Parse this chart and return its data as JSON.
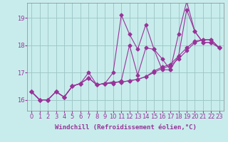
{
  "xlabel": "Windchill (Refroidissement éolien,°C)",
  "bg_color": "#c8ecec",
  "grid_color": "#a0c8c8",
  "line_color": "#993399",
  "x_values": [
    0,
    1,
    2,
    3,
    4,
    5,
    6,
    7,
    8,
    9,
    10,
    11,
    12,
    13,
    14,
    15,
    16,
    17,
    18,
    19,
    20,
    21,
    22,
    23
  ],
  "series": [
    [
      16.3,
      16.0,
      16.0,
      16.3,
      16.1,
      16.5,
      16.6,
      16.8,
      16.55,
      16.6,
      17.0,
      19.1,
      18.4,
      17.85,
      18.75,
      17.85,
      17.1,
      17.1,
      18.4,
      19.6,
      18.5,
      18.1,
      18.1,
      17.9
    ],
    [
      16.3,
      16.0,
      16.0,
      16.3,
      16.1,
      16.5,
      16.6,
      17.0,
      16.55,
      16.6,
      16.6,
      16.7,
      18.0,
      16.9,
      17.9,
      17.85,
      17.5,
      17.1,
      17.6,
      19.3,
      18.5,
      18.1,
      18.1,
      17.9
    ],
    [
      16.3,
      16.0,
      16.0,
      16.3,
      16.1,
      16.5,
      16.6,
      16.8,
      16.55,
      16.6,
      16.65,
      16.65,
      16.7,
      16.75,
      16.85,
      17.0,
      17.15,
      17.25,
      17.5,
      17.8,
      18.1,
      18.2,
      18.2,
      17.9
    ],
    [
      16.3,
      16.0,
      16.0,
      16.3,
      16.1,
      16.5,
      16.6,
      16.8,
      16.55,
      16.6,
      16.65,
      16.65,
      16.7,
      16.75,
      16.85,
      17.05,
      17.2,
      17.3,
      17.6,
      17.9,
      18.15,
      18.2,
      18.2,
      17.9
    ]
  ],
  "ylim": [
    15.6,
    19.55
  ],
  "yticks": [
    16,
    17,
    18,
    19
  ],
  "xlim": [
    -0.5,
    23.5
  ],
  "marker": "D",
  "markersize": 2.5,
  "linewidth": 0.8,
  "tick_fontsize": 6,
  "xlabel_fontsize": 6.5
}
